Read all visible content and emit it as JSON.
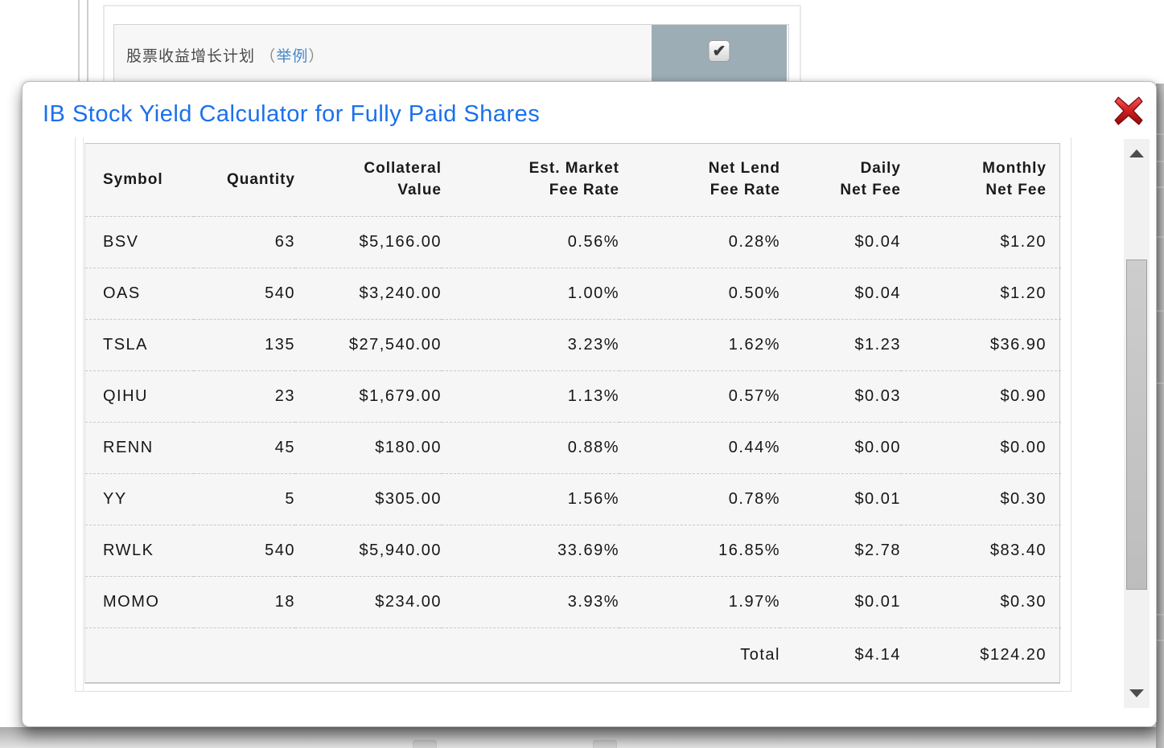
{
  "colors": {
    "title_blue": "#1a70ec",
    "link_blue": "#4788c7",
    "checkbox_cell_bg": "#9dadb6"
  },
  "background": {
    "plan_label": "股票收益增长计划",
    "paren_open": "（",
    "example_link": "举例",
    "paren_close": "）",
    "checkbox_glyph": "✔"
  },
  "modal": {
    "title": "IB Stock Yield Calculator for Fully Paid Shares",
    "table": {
      "columns": [
        "Symbol",
        "Quantity",
        "Collateral\nValue",
        "Est. Market\nFee Rate",
        "Net Lend\nFee Rate",
        "Daily\nNet Fee",
        "Monthly\nNet Fee"
      ],
      "rows": [
        [
          "BSV",
          "63",
          "$5,166.00",
          "0.56%",
          "0.28%",
          "$0.04",
          "$1.20"
        ],
        [
          "OAS",
          "540",
          "$3,240.00",
          "1.00%",
          "0.50%",
          "$0.04",
          "$1.20"
        ],
        [
          "TSLA",
          "135",
          "$27,540.00",
          "3.23%",
          "1.62%",
          "$1.23",
          "$36.90"
        ],
        [
          "QIHU",
          "23",
          "$1,679.00",
          "1.13%",
          "0.57%",
          "$0.03",
          "$0.90"
        ],
        [
          "RENN",
          "45",
          "$180.00",
          "0.88%",
          "0.44%",
          "$0.00",
          "$0.00"
        ],
        [
          "YY",
          "5",
          "$305.00",
          "1.56%",
          "0.78%",
          "$0.01",
          "$0.30"
        ],
        [
          "RWLK",
          "540",
          "$5,940.00",
          "33.69%",
          "16.85%",
          "$2.78",
          "$83.40"
        ],
        [
          "MOMO",
          "18",
          "$234.00",
          "3.93%",
          "1.97%",
          "$0.01",
          "$0.30"
        ]
      ],
      "total_row": [
        "",
        "",
        "",
        "",
        "Total",
        "$4.14",
        "$124.20"
      ]
    }
  }
}
